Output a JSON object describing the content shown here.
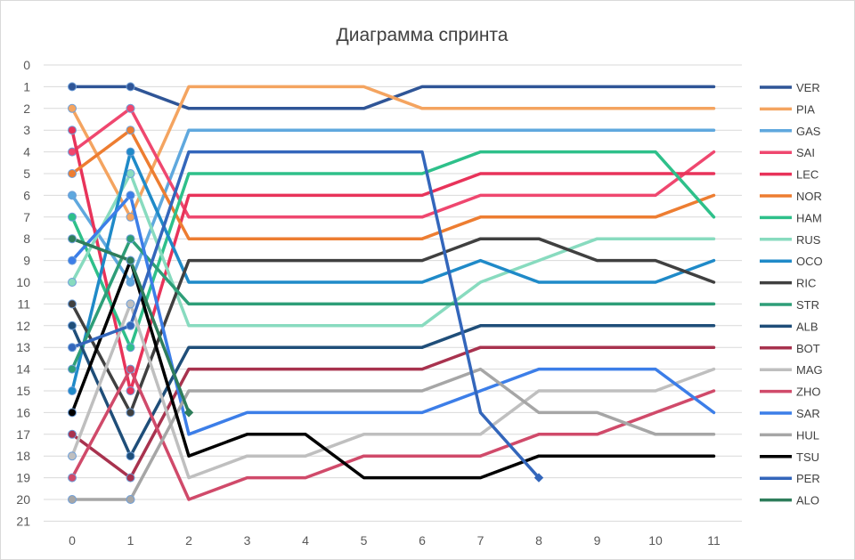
{
  "chart_data": {
    "type": "line",
    "title": "Диаграмма спринта",
    "x": [
      0,
      1,
      2,
      3,
      4,
      5,
      6,
      7,
      8,
      9,
      10,
      11
    ],
    "xlim": [
      0,
      11
    ],
    "ylim": [
      0,
      21
    ],
    "y_reversed": true,
    "x_ticks": [
      0,
      1,
      2,
      3,
      4,
      5,
      6,
      7,
      8,
      9,
      10,
      11
    ],
    "y_ticks": [
      0,
      1,
      2,
      3,
      4,
      5,
      6,
      7,
      8,
      9,
      10,
      11,
      12,
      13,
      14,
      15,
      16,
      17,
      18,
      19,
      20,
      21
    ],
    "grid": "horizontal",
    "legend_position": "right",
    "series": [
      {
        "name": "VER",
        "color": "#2f5597",
        "values": [
          1,
          1,
          2,
          2,
          2,
          2,
          1,
          1,
          1,
          1,
          1,
          1
        ]
      },
      {
        "name": "PIA",
        "color": "#f4a460",
        "values": [
          2,
          7,
          1,
          1,
          1,
          1,
          2,
          2,
          2,
          2,
          2,
          2
        ]
      },
      {
        "name": "GAS",
        "color": "#5fa8de",
        "values": [
          6,
          10,
          3,
          3,
          3,
          3,
          3,
          3,
          3,
          3,
          3,
          3
        ]
      },
      {
        "name": "SAI",
        "color": "#ef476f",
        "values": [
          4,
          2,
          7,
          7,
          7,
          7,
          7,
          6,
          6,
          6,
          6,
          4
        ]
      },
      {
        "name": "LEC",
        "color": "#e8335a",
        "values": [
          3,
          15,
          6,
          6,
          6,
          6,
          6,
          5,
          5,
          5,
          5,
          5
        ]
      },
      {
        "name": "NOR",
        "color": "#ed7d31",
        "values": [
          5,
          3,
          8,
          8,
          8,
          8,
          8,
          7,
          7,
          7,
          7,
          6
        ]
      },
      {
        "name": "HAM",
        "color": "#2ec08a",
        "values": [
          7,
          13,
          5,
          5,
          5,
          5,
          5,
          4,
          4,
          4,
          4,
          7
        ]
      },
      {
        "name": "RUS",
        "color": "#88dbbf",
        "values": [
          10,
          5,
          12,
          12,
          12,
          12,
          12,
          10,
          9,
          8,
          8,
          8
        ]
      },
      {
        "name": "OCO",
        "color": "#1f8ac8",
        "values": [
          15,
          4,
          10,
          10,
          10,
          10,
          10,
          9,
          10,
          10,
          10,
          9
        ]
      },
      {
        "name": "RIC",
        "color": "#404040",
        "values": [
          11,
          16,
          9,
          9,
          9,
          9,
          9,
          8,
          8,
          9,
          9,
          10
        ]
      },
      {
        "name": "STR",
        "color": "#2e9e78",
        "values": [
          14,
          8,
          11,
          11,
          11,
          11,
          11,
          11,
          11,
          11,
          11,
          11
        ]
      },
      {
        "name": "ALB",
        "color": "#1f4e79",
        "values": [
          12,
          18,
          13,
          13,
          13,
          13,
          13,
          12,
          12,
          12,
          12,
          12
        ]
      },
      {
        "name": "BOT",
        "color": "#a8324e",
        "values": [
          17,
          19,
          14,
          14,
          14,
          14,
          14,
          13,
          13,
          13,
          13,
          13
        ]
      },
      {
        "name": "MAG",
        "color": "#bfbfbf",
        "values": [
          18,
          11,
          19,
          18,
          18,
          17,
          17,
          17,
          15,
          15,
          15,
          14
        ]
      },
      {
        "name": "ZHO",
        "color": "#d04a6a",
        "values": [
          19,
          14,
          20,
          19,
          19,
          18,
          18,
          18,
          17,
          17,
          16,
          15
        ]
      },
      {
        "name": "SAR",
        "color": "#3c7ee8",
        "values": [
          9,
          6,
          17,
          16,
          16,
          16,
          16,
          15,
          14,
          14,
          14,
          16
        ]
      },
      {
        "name": "HUL",
        "color": "#a6a6a6",
        "values": [
          20,
          20,
          15,
          15,
          15,
          15,
          15,
          14,
          16,
          16,
          17,
          17
        ]
      },
      {
        "name": "TSU",
        "color": "#000000",
        "values": [
          16,
          9,
          18,
          17,
          17,
          19,
          19,
          19,
          18,
          18,
          18,
          18
        ]
      },
      {
        "name": "PER",
        "color": "#3366bb",
        "values": [
          13,
          12,
          4,
          4,
          4,
          4,
          4,
          16,
          19,
          null,
          null,
          null
        ]
      },
      {
        "name": "ALO",
        "color": "#2e7d5b",
        "values": [
          8,
          9,
          16,
          null,
          null,
          null,
          null,
          null,
          null,
          null,
          null,
          null
        ]
      }
    ]
  }
}
